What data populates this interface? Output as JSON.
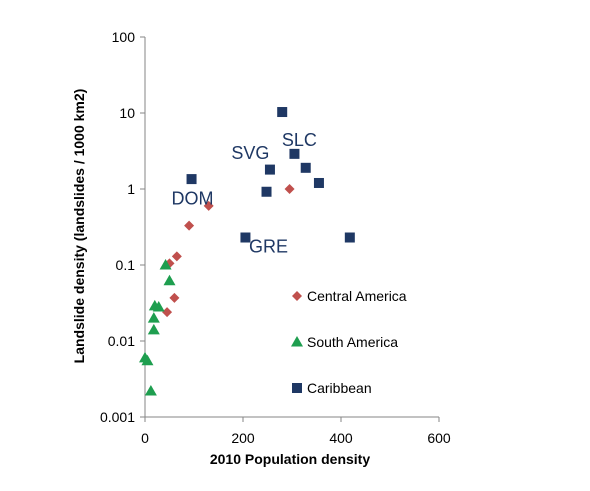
{
  "chart_data": {
    "type": "scatter",
    "title": "",
    "xlabel": "2010 Population density",
    "ylabel": "Landslide density (landslides / 1000 km2)",
    "xlim": [
      0,
      600
    ],
    "ylim": [
      0.001,
      100
    ],
    "yscale": "log",
    "grid": false,
    "legend_position": "right",
    "x_ticks": [
      "0",
      "200",
      "400",
      "600"
    ],
    "x_tick_values": [
      0,
      200,
      400,
      600
    ],
    "y_ticks": [
      "0.001",
      "0.01",
      "0.1",
      "1",
      "10",
      "100"
    ],
    "y_tick_values": [
      0.001,
      0.01,
      0.1,
      1,
      10,
      100
    ],
    "series": [
      {
        "name": "Central America",
        "marker": "diamond",
        "color": "#c0504d",
        "points": [
          [
            45,
            0.024
          ],
          [
            50,
            0.105
          ],
          [
            60,
            0.037
          ],
          [
            65,
            0.13
          ],
          [
            90,
            0.33
          ],
          [
            130,
            0.6
          ],
          [
            295,
            1.0
          ]
        ]
      },
      {
        "name": "South America",
        "marker": "triangle",
        "color": "#1e9e4f",
        "points": [
          [
            0,
            0.006
          ],
          [
            5,
            0.0055
          ],
          [
            12,
            0.0022
          ],
          [
            18,
            0.014
          ],
          [
            18,
            0.02
          ],
          [
            20,
            0.029
          ],
          [
            28,
            0.028
          ],
          [
            42,
            0.1
          ],
          [
            50,
            0.062
          ]
        ]
      },
      {
        "name": "Caribbean",
        "marker": "square",
        "color": "#1f3864",
        "points": [
          [
            95,
            1.35
          ],
          [
            205,
            0.23
          ],
          [
            248,
            0.92
          ],
          [
            255,
            1.8
          ],
          [
            280,
            10.3
          ],
          [
            305,
            2.9
          ],
          [
            328,
            1.9
          ],
          [
            355,
            1.2
          ],
          [
            418,
            0.23
          ]
        ]
      }
    ],
    "annotations": [
      {
        "text": "SLC",
        "x": 315,
        "y": 3.7
      },
      {
        "text": "SVG",
        "x": 215,
        "y": 2.5
      },
      {
        "text": "DOM",
        "x": 97,
        "y": 0.63
      },
      {
        "text": "GRE",
        "x": 252,
        "y": 0.145
      }
    ]
  }
}
